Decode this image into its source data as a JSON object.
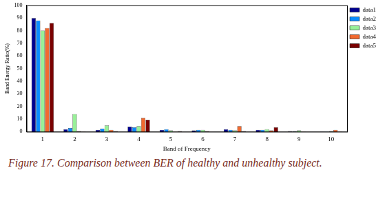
{
  "chart_data": {
    "type": "bar",
    "x_label": "Band of Frequency",
    "y_label": "Band Energy Ratio(%)",
    "categories": [
      "1",
      "2",
      "3",
      "4",
      "5",
      "6",
      "7",
      "8",
      "9",
      "10"
    ],
    "series": [
      {
        "name": "data1",
        "color": "#00008f",
        "values": [
          90,
          2,
          1.5,
          4,
          1.5,
          1,
          2,
          1.5,
          0.5,
          0.3
        ]
      },
      {
        "name": "data2",
        "color": "#0a8cff",
        "values": [
          88,
          3,
          2.5,
          3.5,
          2,
          1.5,
          1.5,
          1.5,
          0.5,
          0.3
        ]
      },
      {
        "name": "data3",
        "color": "#98f098",
        "values": [
          80,
          14,
          5,
          4.5,
          1,
          1.5,
          1,
          2,
          1,
          0.5
        ]
      },
      {
        "name": "data4",
        "color": "#f26a30",
        "values": [
          82,
          0.5,
          1.5,
          11,
          0.3,
          0.5,
          4.5,
          1,
          0.3,
          1.5
        ]
      },
      {
        "name": "data5",
        "color": "#7a0000",
        "values": [
          86,
          0.3,
          0.5,
          9.5,
          0.5,
          0.2,
          0.5,
          3.5,
          0.2,
          0.3
        ]
      }
    ],
    "ylim": [
      0,
      100
    ],
    "yticks": [
      0,
      10,
      20,
      30,
      40,
      50,
      60,
      70,
      80,
      90,
      100
    ],
    "grid": false,
    "legend": "right"
  },
  "caption": "Figure 17. Comparison between BER of healthy and unhealthy subject."
}
